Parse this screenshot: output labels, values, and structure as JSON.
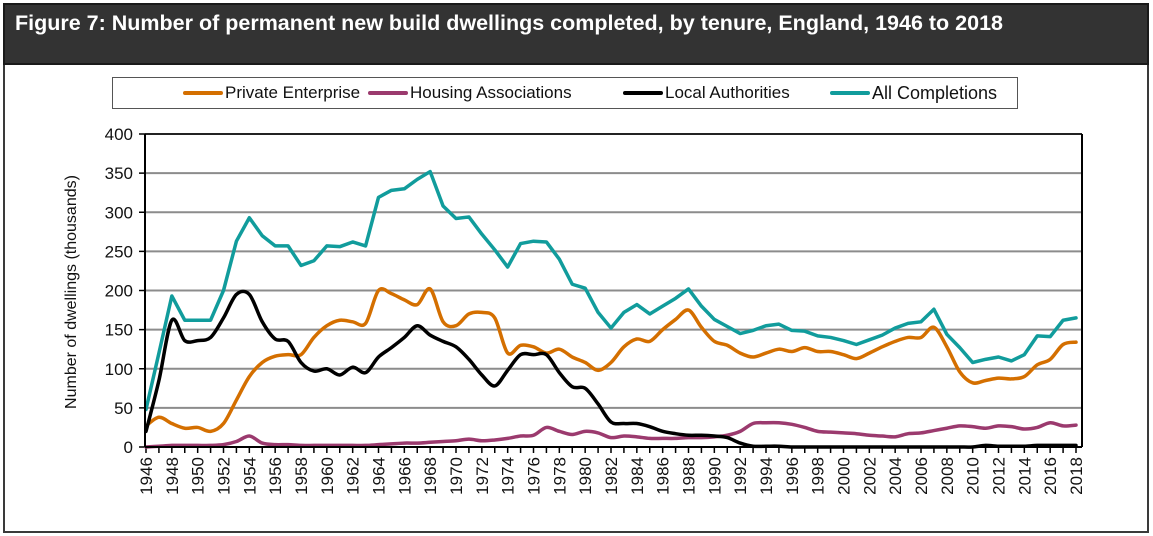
{
  "title": "Figure 7: Number of permanent new build dwellings completed, by tenure, England, 1946 to 2018",
  "legend": [
    {
      "label": "Private Enterprise",
      "color": "#d46f00"
    },
    {
      "label": "Housing Associations",
      "color": "#9b3a6e"
    },
    {
      "label": "Local Authorities",
      "color": "#000000"
    },
    {
      "label": "All Completions",
      "color": "#119c9c"
    }
  ],
  "chart_data": {
    "type": "line",
    "title": "Figure 7: Number of permanent new build dwellings completed, by tenure, England, 1946 to 2018",
    "xlabel": "",
    "ylabel": "Number of dwellings (thousands)",
    "ylim": [
      0,
      400
    ],
    "yticks": [
      0,
      50,
      100,
      150,
      200,
      250,
      300,
      350,
      400
    ],
    "grid": true,
    "legend_position": "top",
    "x": [
      1946,
      1947,
      1948,
      1949,
      1950,
      1951,
      1952,
      1953,
      1954,
      1955,
      1956,
      1957,
      1958,
      1959,
      1960,
      1961,
      1962,
      1963,
      1964,
      1965,
      1966,
      1967,
      1968,
      1969,
      1970,
      1971,
      1972,
      1973,
      1974,
      1975,
      1976,
      1977,
      1978,
      1979,
      1980,
      1981,
      1982,
      1983,
      1984,
      1985,
      1986,
      1987,
      1988,
      1989,
      1990,
      1991,
      1992,
      1993,
      1994,
      1995,
      1996,
      1997,
      1998,
      1999,
      2000,
      2001,
      2002,
      2003,
      2004,
      2005,
      2006,
      2007,
      2008,
      2009,
      2010,
      2011,
      2012,
      2013,
      2014,
      2015,
      2016,
      2017,
      2018
    ],
    "xtick_labels": [
      "1946",
      "1948",
      "1950",
      "1952",
      "1954",
      "1956",
      "1958",
      "1960",
      "1962",
      "1964",
      "1966",
      "1968",
      "1970",
      "1972",
      "1974",
      "1976",
      "1978",
      "1980",
      "1982",
      "1984",
      "1986",
      "1988",
      "1990",
      "1992",
      "1994",
      "1996",
      "1998",
      "2000",
      "2002",
      "2004",
      "2006",
      "2008",
      "2010",
      "2012",
      "2014",
      "2016",
      "2018"
    ],
    "series": [
      {
        "name": "Private Enterprise",
        "color": "#d46f00",
        "values": [
          27,
          38,
          30,
          24,
          25,
          20,
          30,
          60,
          90,
          108,
          116,
          118,
          118,
          140,
          155,
          162,
          160,
          158,
          200,
          196,
          188,
          182,
          202,
          160,
          155,
          170,
          172,
          165,
          120,
          130,
          128,
          120,
          125,
          115,
          108,
          98,
          108,
          128,
          138,
          135,
          150,
          163,
          175,
          153,
          135,
          130,
          120,
          115,
          120,
          125,
          122,
          127,
          122,
          122,
          118,
          113,
          120,
          128,
          135,
          140,
          140,
          153,
          128,
          96,
          82,
          85,
          88,
          87,
          90,
          105,
          112,
          131,
          134
        ]
      },
      {
        "name": "Housing Associations",
        "color": "#9b3a6e",
        "values": [
          0,
          1,
          2,
          2,
          2,
          2,
          3,
          7,
          14,
          5,
          3,
          3,
          2,
          2,
          2,
          2,
          2,
          2,
          3,
          4,
          5,
          5,
          6,
          7,
          8,
          10,
          8,
          9,
          11,
          14,
          15,
          25,
          20,
          16,
          20,
          18,
          12,
          14,
          13,
          11,
          11,
          11,
          12,
          12,
          13,
          15,
          20,
          30,
          31,
          31,
          29,
          25,
          20,
          19,
          18,
          17,
          15,
          14,
          13,
          17,
          18,
          21,
          24,
          27,
          26,
          24,
          27,
          26,
          23,
          25,
          31,
          27,
          28
        ]
      },
      {
        "name": "Local Authorities",
        "color": "#000000",
        "values": [
          20,
          85,
          162,
          136,
          136,
          140,
          165,
          195,
          195,
          160,
          138,
          135,
          108,
          97,
          100,
          92,
          102,
          95,
          115,
          127,
          140,
          155,
          143,
          135,
          128,
          112,
          92,
          78,
          98,
          118,
          118,
          118,
          95,
          77,
          75,
          55,
          32,
          30,
          30,
          26,
          20,
          17,
          15,
          15,
          14,
          12,
          5,
          1,
          1,
          1,
          0,
          0,
          0,
          0,
          0,
          0,
          0,
          0,
          0,
          0,
          0,
          0,
          0,
          0,
          0,
          2,
          1,
          1,
          1,
          2,
          2,
          2,
          2
        ]
      },
      {
        "name": "All Completions",
        "color": "#119c9c",
        "values": [
          48,
          120,
          193,
          162,
          162,
          162,
          200,
          263,
          293,
          270,
          257,
          257,
          232,
          238,
          257,
          256,
          262,
          257,
          319,
          328,
          330,
          342,
          352,
          308,
          292,
          294,
          272,
          252,
          230,
          260,
          263,
          262,
          240,
          208,
          203,
          172,
          152,
          172,
          182,
          170,
          180,
          190,
          202,
          180,
          163,
          154,
          145,
          149,
          155,
          157,
          149,
          148,
          142,
          140,
          136,
          131,
          137,
          143,
          152,
          158,
          160,
          176,
          144,
          127,
          108,
          112,
          115,
          110,
          118,
          142,
          141,
          162,
          165
        ]
      }
    ]
  }
}
